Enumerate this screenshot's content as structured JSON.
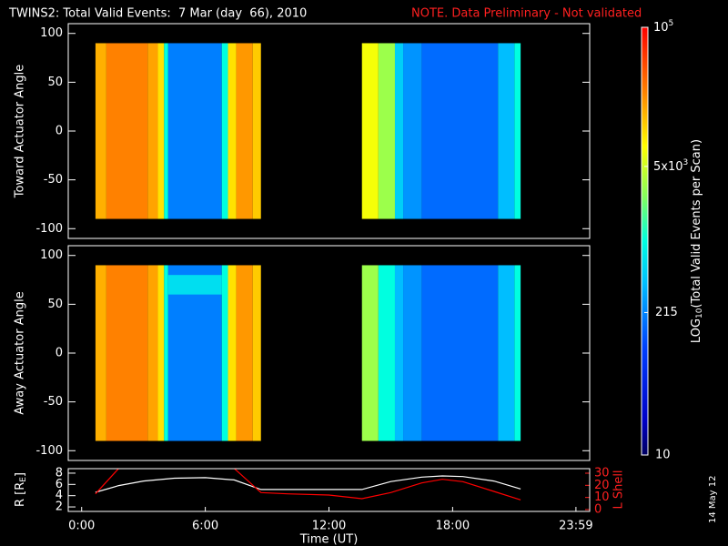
{
  "header": {
    "title": "TWINS2: Total Valid Events:  7 Mar (day  66), 2010",
    "note": "NOTE. Data Preliminary - Not validated",
    "stamp": "14 May 12"
  },
  "colorbar": {
    "label": "LOG",
    "label_sub": "10",
    "label_end": "(Total Valid Events per Scan)",
    "zlim": [
      10,
      100000
    ],
    "scale": "log",
    "ticks": [
      {
        "value": 100000,
        "label": "10",
        "sup": "5"
      },
      {
        "value": 5000,
        "label": "5x10",
        "sup": "3"
      },
      215,
      10
    ]
  },
  "chart_data": [
    {
      "type": "heatmap",
      "ylabel": "Toward Actuator Angle",
      "xlim": [
        -0.65,
        24.65
      ],
      "ylim": [
        -110,
        110
      ],
      "yticks": [
        100,
        50,
        0,
        -50,
        -100
      ],
      "cells": [
        {
          "x": [
            0.67,
            1.2
          ],
          "y": [
            -90,
            90
          ],
          "value": 16000
        },
        {
          "x": [
            1.2,
            3.2
          ],
          "y": [
            -90,
            90
          ],
          "value": 25000
        },
        {
          "x": [
            3.2,
            3.7
          ],
          "y": [
            -90,
            90
          ],
          "value": 18000
        },
        {
          "x": [
            3.7,
            4.0
          ],
          "y": [
            -90,
            90
          ],
          "value": 10000
        },
        {
          "x": [
            4.0,
            4.2
          ],
          "y": [
            -90,
            90
          ],
          "value": 1000
        },
        {
          "x": [
            4.2,
            6.8
          ],
          "y": [
            -90,
            90
          ],
          "value": 200
        },
        {
          "x": [
            6.8,
            7.1
          ],
          "y": [
            -90,
            90
          ],
          "value": 1000
        },
        {
          "x": [
            7.1,
            7.5
          ],
          "y": [
            -90,
            90
          ],
          "value": 10000
        },
        {
          "x": [
            7.5,
            8.3
          ],
          "y": [
            -90,
            90
          ],
          "value": 20000
        },
        {
          "x": [
            8.3,
            8.7
          ],
          "y": [
            -90,
            90
          ],
          "value": 12500
        },
        {
          "x": [
            13.6,
            14.4
          ],
          "y": [
            -90,
            90
          ],
          "value": 7000
        },
        {
          "x": [
            14.4,
            15.2
          ],
          "y": [
            -90,
            90
          ],
          "value": 3200
        },
        {
          "x": [
            15.2,
            15.6
          ],
          "y": [
            -90,
            90
          ],
          "value": 500
        },
        {
          "x": [
            15.6,
            16.5
          ],
          "y": [
            -90,
            90
          ],
          "value": 250
        },
        {
          "x": [
            16.5,
            20.2
          ],
          "y": [
            -90,
            90
          ],
          "value": 160
        },
        {
          "x": [
            20.2,
            21.0
          ],
          "y": [
            -90,
            90
          ],
          "value": 400
        },
        {
          "x": [
            21.0,
            21.3
          ],
          "y": [
            -90,
            90
          ],
          "value": 1000
        }
      ]
    },
    {
      "type": "heatmap",
      "ylabel": "Away Actuator Angle",
      "xlim": [
        -0.65,
        24.65
      ],
      "ylim": [
        -110,
        110
      ],
      "yticks": [
        100,
        50,
        0,
        -50,
        -100
      ],
      "cells": [
        {
          "x": [
            0.67,
            1.2
          ],
          "y": [
            -90,
            90
          ],
          "value": 16000
        },
        {
          "x": [
            1.2,
            3.2
          ],
          "y": [
            -90,
            90
          ],
          "value": 25000
        },
        {
          "x": [
            3.2,
            3.7
          ],
          "y": [
            -90,
            90
          ],
          "value": 18000
        },
        {
          "x": [
            3.7,
            4.0
          ],
          "y": [
            -90,
            90
          ],
          "value": 10000
        },
        {
          "x": [
            4.0,
            4.2
          ],
          "y": [
            -90,
            90
          ],
          "value": 1000
        },
        {
          "x": [
            4.2,
            6.8
          ],
          "y": [
            -90,
            90
          ],
          "value": 200
        },
        {
          "x": [
            4.2,
            6.8
          ],
          "y": [
            60,
            80
          ],
          "value": 630
        },
        {
          "x": [
            6.8,
            7.1
          ],
          "y": [
            -90,
            90
          ],
          "value": 1000
        },
        {
          "x": [
            7.1,
            7.5
          ],
          "y": [
            -90,
            90
          ],
          "value": 10000
        },
        {
          "x": [
            7.5,
            8.3
          ],
          "y": [
            -90,
            90
          ],
          "value": 20000
        },
        {
          "x": [
            8.3,
            8.7
          ],
          "y": [
            -90,
            90
          ],
          "value": 12500
        },
        {
          "x": [
            13.6,
            14.4
          ],
          "y": [
            -90,
            90
          ],
          "value": 3200
        },
        {
          "x": [
            14.4,
            15.2
          ],
          "y": [
            -90,
            90
          ],
          "value": 1000
        },
        {
          "x": [
            15.2,
            15.6
          ],
          "y": [
            -90,
            90
          ],
          "value": 400
        },
        {
          "x": [
            15.6,
            16.5
          ],
          "y": [
            -90,
            90
          ],
          "value": 250
        },
        {
          "x": [
            16.5,
            20.2
          ],
          "y": [
            -90,
            90
          ],
          "value": 160
        },
        {
          "x": [
            20.2,
            21.0
          ],
          "y": [
            -90,
            90
          ],
          "value": 400
        },
        {
          "x": [
            21.0,
            21.3
          ],
          "y": [
            -90,
            90
          ],
          "value": 1000
        }
      ]
    },
    {
      "type": "line",
      "ylabel": "R [R",
      "ylabel_sub": "E",
      "ylabel_end": "]",
      "y2label": "L Shell",
      "xlabel": "Time (UT)",
      "xlim": [
        -0.65,
        24.65
      ],
      "xticks": [
        {
          "value": 0,
          "label": "0:00"
        },
        {
          "value": 6,
          "label": "6:00"
        },
        {
          "value": 12,
          "label": "12:00"
        },
        {
          "value": 18,
          "label": "18:00"
        },
        {
          "value": 23.983,
          "label": "23:59"
        }
      ],
      "ylim": [
        1.2,
        8.8
      ],
      "yticks": [
        2,
        4,
        6,
        8
      ],
      "y2lim": [
        -1.5,
        33.75
      ],
      "y2ticks": [
        0,
        10,
        20,
        30
      ],
      "x": [
        0.67,
        1.8,
        3,
        4.5,
        6,
        7.4,
        8.7,
        10,
        12,
        13.6,
        15,
        16.5,
        17.5,
        18.5,
        20,
        21.3
      ],
      "series": [
        {
          "name": "R",
          "color": "#ffffff",
          "values": [
            4.6,
            5.8,
            6.6,
            7.1,
            7.2,
            6.8,
            5.1,
            5.1,
            5.1,
            5.1,
            6.5,
            7.3,
            7.5,
            7.4,
            6.6,
            5.2
          ]
        },
        {
          "name": "L Shell",
          "color": "#ff0000",
          "axis": "y2",
          "values": [
            13,
            34,
            null,
            null,
            null,
            34,
            14,
            13,
            12,
            9,
            14,
            22,
            25,
            23,
            15,
            8
          ]
        }
      ]
    }
  ]
}
